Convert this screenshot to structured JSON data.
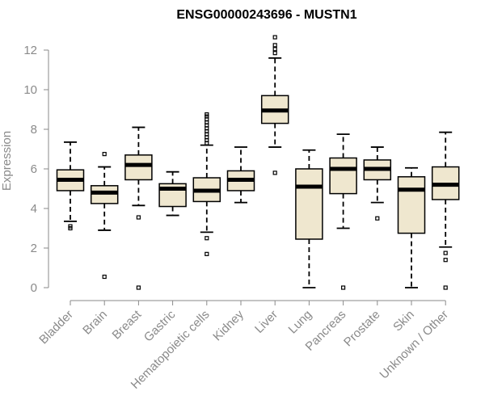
{
  "chart_data": {
    "type": "boxplot",
    "title": "ENSG00000243696 - MUSTN1",
    "ylabel": "Expression",
    "ylim": [
      0,
      12.5
    ],
    "yticks": [
      0,
      2,
      4,
      6,
      8,
      10,
      12
    ],
    "grid": false,
    "box_fill": "#efe7cf",
    "categories": [
      "Bladder",
      "Brain",
      "Breast",
      "Gastric",
      "Hematopoietic cells",
      "Kidney",
      "Liver",
      "Lung",
      "Pancreas",
      "Prostate",
      "Skin",
      "Unknown / Other"
    ],
    "boxes": [
      {
        "whisker_low": 3.35,
        "q1": 4.9,
        "median": 5.45,
        "q3": 5.95,
        "whisker_high": 7.35,
        "outliers": [
          3.0,
          3.1
        ]
      },
      {
        "whisker_low": 2.9,
        "q1": 4.25,
        "median": 4.8,
        "q3": 5.15,
        "whisker_high": 6.1,
        "outliers": [
          6.75,
          0.55
        ]
      },
      {
        "whisker_low": 4.15,
        "q1": 5.45,
        "median": 6.2,
        "q3": 6.7,
        "whisker_high": 8.1,
        "outliers": [
          3.55,
          0.0
        ]
      },
      {
        "whisker_low": 3.65,
        "q1": 4.1,
        "median": 5.0,
        "q3": 5.25,
        "whisker_high": 5.85,
        "outliers": []
      },
      {
        "whisker_low": 2.8,
        "q1": 4.35,
        "median": 4.9,
        "q3": 5.55,
        "whisker_high": 7.2,
        "outliers": [
          2.5,
          1.7,
          7.3,
          7.45,
          7.6,
          7.75,
          7.9,
          8.05,
          8.2,
          8.35,
          8.5,
          8.65,
          8.75
        ]
      },
      {
        "whisker_low": 4.3,
        "q1": 4.9,
        "median": 5.45,
        "q3": 5.9,
        "whisker_high": 7.1,
        "outliers": []
      },
      {
        "whisker_low": 7.1,
        "q1": 8.3,
        "median": 8.95,
        "q3": 9.7,
        "whisker_high": 11.6,
        "outliers": [
          5.8,
          11.85,
          12.05,
          12.25,
          12.65
        ]
      },
      {
        "whisker_low": 0.0,
        "q1": 2.45,
        "median": 5.1,
        "q3": 6.0,
        "whisker_high": 6.95,
        "outliers": []
      },
      {
        "whisker_low": 3.0,
        "q1": 4.75,
        "median": 6.0,
        "q3": 6.55,
        "whisker_high": 7.75,
        "outliers": [
          0.0
        ]
      },
      {
        "whisker_low": 4.3,
        "q1": 5.45,
        "median": 6.0,
        "q3": 6.45,
        "whisker_high": 7.1,
        "outliers": [
          3.5
        ]
      },
      {
        "whisker_low": 0.0,
        "q1": 2.75,
        "median": 4.95,
        "q3": 5.6,
        "whisker_high": 6.05,
        "outliers": []
      },
      {
        "whisker_low": 2.05,
        "q1": 4.45,
        "median": 5.2,
        "q3": 6.1,
        "whisker_high": 7.85,
        "outliers": [
          1.75,
          1.4,
          0.0
        ]
      }
    ]
  }
}
